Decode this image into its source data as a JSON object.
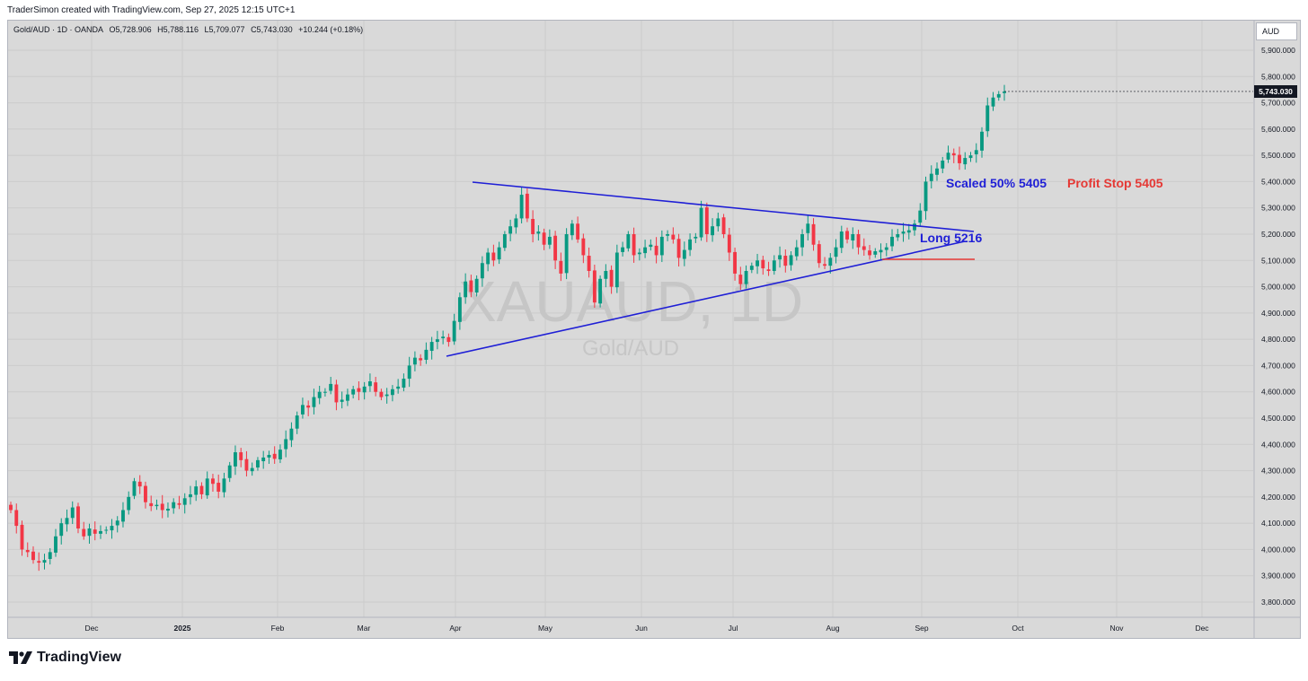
{
  "header": {
    "attribution": "TraderSimon created with TradingView.com, Sep 27, 2025 12:15 UTC+1"
  },
  "legend": {
    "symbol": "Gold/AUD · 1D · OANDA",
    "open": "O5,728.906",
    "high": "H5,788.116",
    "low": "L5,709.077",
    "close": "C5,743.030",
    "change": "+10.244 (+0.18%)"
  },
  "currency": "AUD",
  "last_price": "5,743.030",
  "watermark": {
    "ticker": "XAUAUD, 1D",
    "name": "Gold/AUD"
  },
  "annotations": {
    "scaled": "Scaled 50% 5405",
    "profit_stop": "Profit Stop 5405",
    "long": "Long 5216"
  },
  "brand": {
    "name": "TradingView"
  },
  "colors": {
    "up": "#089981",
    "down": "#f23645",
    "trendline": "#1f1fd6",
    "stop_line": "#e53935",
    "annotation_red": "#e53935"
  },
  "chart_data": {
    "type": "candlestick",
    "y_ticks": [
      "3,800.000",
      "3,900.000",
      "4,000.000",
      "4,100.000",
      "4,200.000",
      "4,300.000",
      "4,400.000",
      "4,500.000",
      "4,600.000",
      "4,700.000",
      "4,800.000",
      "4,900.000",
      "5,000.000",
      "5,100.000",
      "5,200.000",
      "5,300.000",
      "5,400.000",
      "5,500.000",
      "5,600.000",
      "5,700.000",
      "5,800.000",
      "5,900.000"
    ],
    "x_ticks": [
      "Dec",
      "2025",
      "Feb",
      "Mar",
      "Apr",
      "May",
      "Jun",
      "Jul",
      "Aug",
      "Sep",
      "Oct",
      "Nov",
      "Dec"
    ],
    "ylim": [
      3740,
      5990
    ],
    "grid": true,
    "series": [
      {
        "name": "Gold/AUD",
        "close": [
          4150,
          4090,
          4000,
          3990,
          3960,
          3950,
          3960,
          3990,
          4050,
          4100,
          4120,
          4160,
          4080,
          4050,
          4080,
          4060,
          4070,
          4075,
          4090,
          4110,
          4150,
          4200,
          4260,
          4240,
          4180,
          4165,
          4170,
          4150,
          4155,
          4180,
          4170,
          4195,
          4210,
          4240,
          4210,
          4270,
          4250,
          4220,
          4270,
          4320,
          4370,
          4340,
          4300,
          4310,
          4340,
          4350,
          4360,
          4345,
          4380,
          4420,
          4460,
          4510,
          4550,
          4540,
          4580,
          4600,
          4600,
          4630,
          4560,
          4570,
          4590,
          4610,
          4600,
          4620,
          4640,
          4600,
          4580,
          4590,
          4610,
          4620,
          4650,
          4700,
          4730,
          4720,
          4760,
          4790,
          4800,
          4810,
          4790,
          4870,
          4960,
          5020,
          4980,
          5030,
          5090,
          5130,
          5100,
          5150,
          5200,
          5230,
          5260,
          5350,
          5260,
          5200,
          5210,
          5160,
          5190,
          5100,
          5050,
          5200,
          5240,
          5180,
          5120,
          5060,
          4940,
          5030,
          5060,
          5000,
          5130,
          5150,
          5200,
          5120,
          5130,
          5150,
          5160,
          5120,
          5190,
          5200,
          5180,
          5110,
          5140,
          5180,
          5190,
          5300,
          5200,
          5230,
          5260,
          5200,
          5130,
          5050,
          5010,
          5060,
          5080,
          5100,
          5070,
          5060,
          5100,
          5120,
          5080,
          5120,
          5150,
          5200,
          5240,
          5160,
          5090,
          5080,
          5110,
          5150,
          5210,
          5180,
          5200,
          5150,
          5140,
          5120,
          5135,
          5140,
          5150,
          5190,
          5200,
          5210,
          5215,
          5240,
          5290,
          5400,
          5430,
          5450,
          5480,
          5510,
          5500,
          5470,
          5490,
          5500,
          5520,
          5590,
          5690,
          5720,
          5733,
          5743
        ]
      }
    ]
  }
}
